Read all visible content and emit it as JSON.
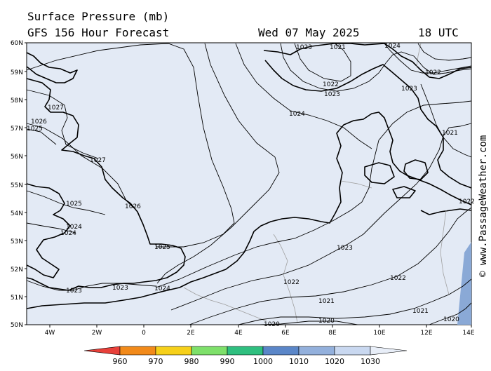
{
  "header": {
    "title": "Surface Pressure (mb)",
    "model": "GFS 156 Hour Forecast",
    "date": "Wed 07 May 2025",
    "time": "18 UTC"
  },
  "credit": "© www.PassageWeather.com",
  "axes": {
    "lat_labels": [
      "60N",
      "59N",
      "58N",
      "57N",
      "56N",
      "55N",
      "54N",
      "53N",
      "52N",
      "51N",
      "50N"
    ],
    "lon_labels": [
      "4W",
      "2W",
      "0",
      "2E",
      "4E",
      "6E",
      "8E",
      "10E",
      "12E",
      "14E"
    ]
  },
  "isobar_labels": [
    {
      "text": "1021"
    },
    {
      "text": "1022"
    },
    {
      "text": "1023"
    },
    {
      "text": "1024"
    },
    {
      "text": "1027"
    },
    {
      "text": "1026"
    },
    {
      "text": "1025"
    },
    {
      "text": "1027"
    },
    {
      "text": "1025"
    },
    {
      "text": "1026"
    },
    {
      "text": "1024"
    },
    {
      "text": "1024"
    },
    {
      "text": "1025"
    },
    {
      "text": "1023"
    },
    {
      "text": "1023"
    },
    {
      "text": "1024"
    },
    {
      "text": "1022"
    },
    {
      "text": "1021"
    },
    {
      "text": "1020"
    },
    {
      "text": "1022"
    },
    {
      "text": "1021"
    },
    {
      "text": "1020"
    },
    {
      "text": "1023"
    },
    {
      "text": "1022"
    },
    {
      "text": "1023"
    },
    {
      "text": "1021"
    },
    {
      "text": "1022"
    },
    {
      "text": "1023"
    },
    {
      "text": "1024"
    },
    {
      "text": "1020"
    }
  ],
  "legend": {
    "labels": [
      "960",
      "970",
      "980",
      "990",
      "1000",
      "1010",
      "1020",
      "1030"
    ],
    "colors": [
      "#e8403a",
      "#f28a1a",
      "#f6d01a",
      "#7ee06a",
      "#2fbf7f",
      "#5a86c8",
      "#93b0dc",
      "#c9d8f0",
      "#e8eef8"
    ]
  },
  "colors": {
    "sea": "#e3eaf5",
    "deep_low": "#8aa9d6",
    "coast": "#000000",
    "isobar": "#000000",
    "border": "#a0a0a0"
  }
}
